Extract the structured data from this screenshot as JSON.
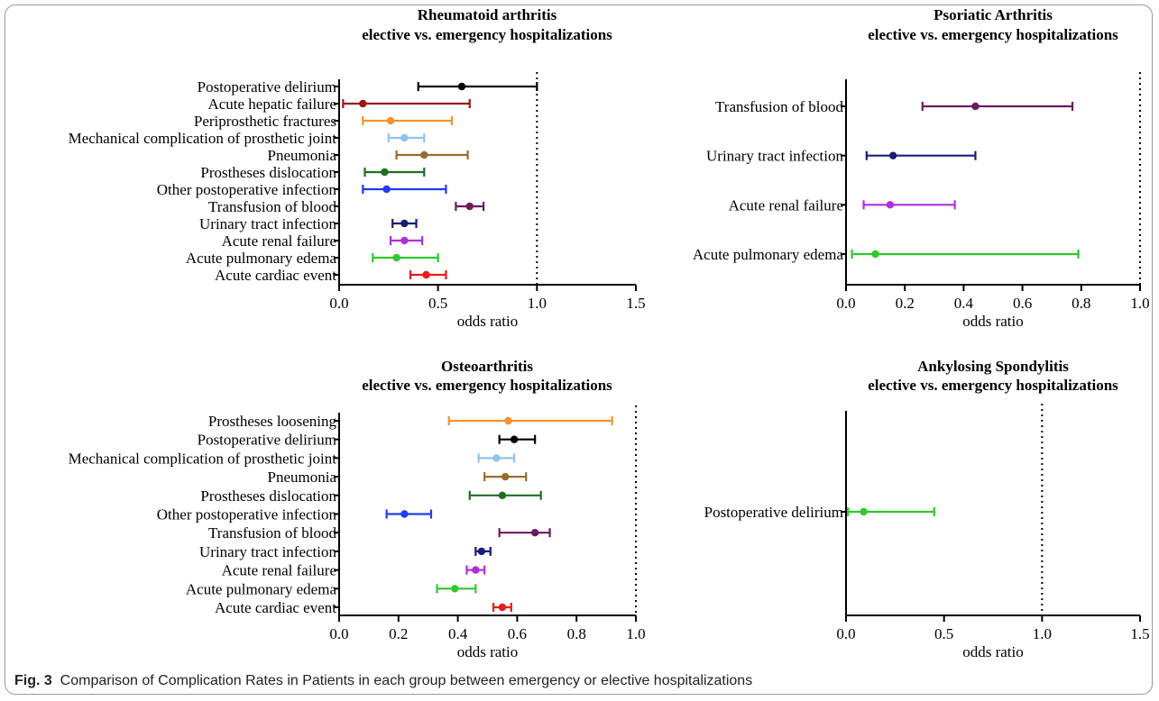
{
  "caption": {
    "label": "Fig. 3",
    "text": "Comparison of Complication Rates in Patients in each group between emergency or elective hospitalizations"
  },
  "chart_data": [
    {
      "type": "forest",
      "title": "Rheumatoid arthritis",
      "subtitle": "elective vs. emergency  hospitalizations",
      "xlabel": "odds ratio",
      "xlim": [
        0,
        1.5
      ],
      "xticks": [
        "0.0",
        "0.5",
        "1.0",
        "1.5"
      ],
      "xtick_values": [
        0,
        0.5,
        1.0,
        1.5
      ],
      "reference_line": 1.0,
      "rows": [
        {
          "label": "Postoperative delirium",
          "or": 0.62,
          "low": 0.4,
          "high": 1.0,
          "color": "#000000"
        },
        {
          "label": "Acute hepatic failure",
          "or": 0.12,
          "low": 0.02,
          "high": 0.66,
          "color": "#a01515"
        },
        {
          "label": "Periprosthetic fractures",
          "or": 0.26,
          "low": 0.12,
          "high": 0.57,
          "color": "#f5922e"
        },
        {
          "label": "Mechanical complication of prosthetic joint",
          "or": 0.33,
          "low": 0.25,
          "high": 0.43,
          "color": "#8ec4f0"
        },
        {
          "label": "Pneumonia",
          "or": 0.43,
          "low": 0.29,
          "high": 0.65,
          "color": "#9c6a2c"
        },
        {
          "label": "Prostheses dislocation",
          "or": 0.23,
          "low": 0.13,
          "high": 0.43,
          "color": "#1f6e22"
        },
        {
          "label": "Other postoperative infection",
          "or": 0.24,
          "low": 0.12,
          "high": 0.54,
          "color": "#1e3cf0"
        },
        {
          "label": "Transfusion of blood",
          "or": 0.66,
          "low": 0.59,
          "high": 0.73,
          "color": "#6e1a5a"
        },
        {
          "label": "Urinary tract infection",
          "or": 0.33,
          "low": 0.27,
          "high": 0.39,
          "color": "#1a1a7a"
        },
        {
          "label": "Acute renal failure",
          "or": 0.33,
          "low": 0.26,
          "high": 0.42,
          "color": "#b030d8"
        },
        {
          "label": "Acute pulmonary edema",
          "or": 0.29,
          "low": 0.17,
          "high": 0.5,
          "color": "#2ec92e"
        },
        {
          "label": "Acute cardiac event",
          "or": 0.44,
          "low": 0.36,
          "high": 0.54,
          "color": "#f01818"
        }
      ]
    },
    {
      "type": "forest",
      "title": "Psoriatic Arthritis",
      "subtitle": "elective vs. emergency  hospitalizations",
      "xlabel": "odds ratio",
      "xlim": [
        0,
        1.0
      ],
      "xticks": [
        "0.0",
        "0.2",
        "0.4",
        "0.6",
        "0.8",
        "1.0"
      ],
      "xtick_values": [
        0,
        0.2,
        0.4,
        0.6,
        0.8,
        1.0
      ],
      "reference_line": 1.0,
      "rows": [
        {
          "label": "Transfusion of blood",
          "or": 0.44,
          "low": 0.26,
          "high": 0.77,
          "color": "#6e1a5a"
        },
        {
          "label": "Urinary tract infection",
          "or": 0.16,
          "low": 0.07,
          "high": 0.44,
          "color": "#1a1a7a"
        },
        {
          "label": "Acute renal failure",
          "or": 0.15,
          "low": 0.06,
          "high": 0.37,
          "color": "#b030d8"
        },
        {
          "label": "Acute pulmonary edema",
          "or": 0.1,
          "low": 0.02,
          "high": 0.79,
          "color": "#2ec92e"
        }
      ]
    },
    {
      "type": "forest",
      "title": "Osteoarthritis",
      "subtitle": "elective vs. emergency  hospitalizations",
      "xlabel": "odds ratio",
      "xlim": [
        0,
        1.0
      ],
      "xticks": [
        "0.0",
        "0.2",
        "0.4",
        "0.6",
        "0.8",
        "1.0"
      ],
      "xtick_values": [
        0,
        0.2,
        0.4,
        0.6,
        0.8,
        1.0
      ],
      "reference_line": 1.0,
      "rows": [
        {
          "label": "Prostheses loosening",
          "or": 0.57,
          "low": 0.37,
          "high": 0.92,
          "color": "#f5922e"
        },
        {
          "label": "Postoperative delirium",
          "or": 0.59,
          "low": 0.54,
          "high": 0.66,
          "color": "#000000"
        },
        {
          "label": "Mechanical complication of prosthetic joint",
          "or": 0.53,
          "low": 0.47,
          "high": 0.59,
          "color": "#8ec4f0"
        },
        {
          "label": "Pneumonia",
          "or": 0.56,
          "low": 0.49,
          "high": 0.63,
          "color": "#9c6a2c"
        },
        {
          "label": "Prostheses dislocation",
          "or": 0.55,
          "low": 0.44,
          "high": 0.68,
          "color": "#1f6e22"
        },
        {
          "label": "Other postoperative infection",
          "or": 0.22,
          "low": 0.16,
          "high": 0.31,
          "color": "#1e3cf0"
        },
        {
          "label": "Transfusion of blood",
          "or": 0.66,
          "low": 0.54,
          "high": 0.71,
          "color": "#6e1a5a"
        },
        {
          "label": "Urinary tract infection",
          "or": 0.48,
          "low": 0.46,
          "high": 0.51,
          "color": "#1a1a7a"
        },
        {
          "label": "Acute renal failure",
          "or": 0.46,
          "low": 0.43,
          "high": 0.49,
          "color": "#b030d8"
        },
        {
          "label": "Acute pulmonary edema",
          "or": 0.39,
          "low": 0.33,
          "high": 0.46,
          "color": "#2ec92e"
        },
        {
          "label": "Acute cardiac event",
          "or": 0.55,
          "low": 0.52,
          "high": 0.58,
          "color": "#f01818"
        }
      ]
    },
    {
      "type": "forest",
      "title": "Ankylosing Spondylitis",
      "subtitle": "elective vs. emergency  hospitalizations",
      "xlabel": "odds ratio",
      "xlim": [
        0,
        1.5
      ],
      "xticks": [
        "0.0",
        "0.5",
        "1.0",
        "1.5"
      ],
      "xtick_values": [
        0,
        0.5,
        1.0,
        1.5
      ],
      "reference_line": 1.0,
      "rows": [
        {
          "label": "Postoperative delirium",
          "or": 0.09,
          "low": 0.01,
          "high": 0.45,
          "color": "#2ec92e"
        }
      ]
    }
  ]
}
